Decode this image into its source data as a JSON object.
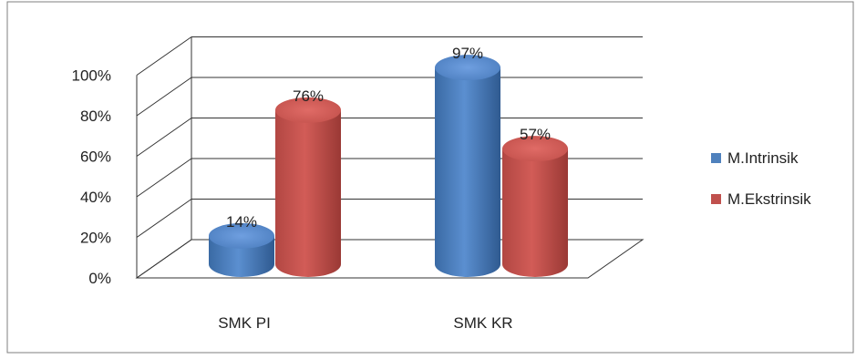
{
  "chart_data": {
    "type": "bar",
    "title": "",
    "xlabel": "",
    "ylabel": "",
    "categories": [
      "SMK PI",
      "SMK KR"
    ],
    "series": [
      {
        "name": "M.Intrinsik",
        "values": [
          14,
          97
        ],
        "labels": [
          "14%",
          "97%"
        ],
        "color": "#4F81BD"
      },
      {
        "name": "M.Ekstrinsik",
        "values": [
          76,
          57
        ],
        "labels": [
          "76%",
          "57%"
        ],
        "color": "#C0504D"
      }
    ],
    "ylim": [
      0,
      100
    ],
    "yticks": [
      "0%",
      "20%",
      "40%",
      "60%",
      "80%",
      "100%"
    ],
    "grid": true,
    "legend": "right",
    "style_3d": "cylinder"
  }
}
